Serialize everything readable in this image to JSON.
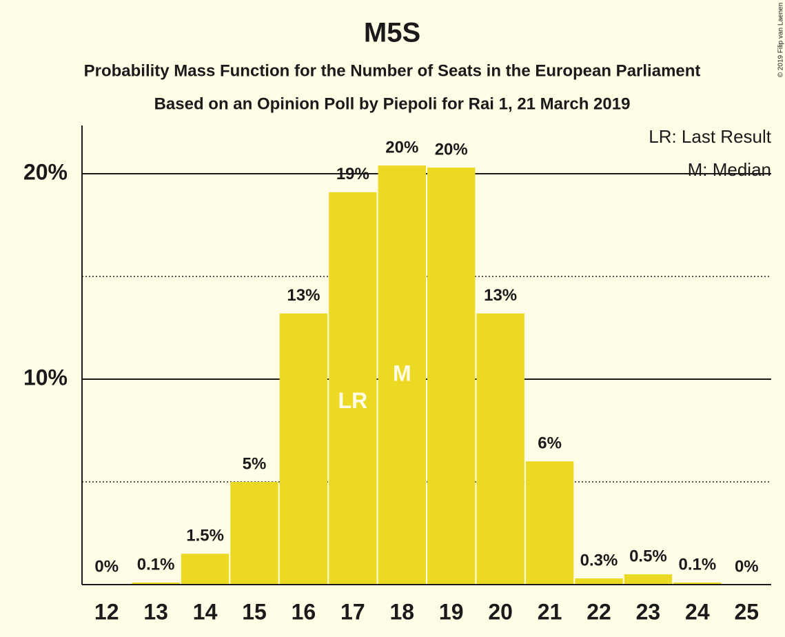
{
  "chart_data": {
    "type": "bar",
    "title": "M5S",
    "subtitle": "Probability Mass Function for the Number of Seats in the European Parliament",
    "subtitle2": "Based on an Opinion Poll by Piepoli for Rai 1, 21 March 2019",
    "copyright": "© 2019 Filip van Laenen",
    "categories": [
      "12",
      "13",
      "14",
      "15",
      "16",
      "17",
      "18",
      "19",
      "20",
      "21",
      "22",
      "23",
      "24",
      "25"
    ],
    "values": [
      0,
      0.1,
      1.5,
      5,
      13.2,
      19.1,
      20.4,
      20.3,
      13.2,
      6,
      0.3,
      0.5,
      0.1,
      0
    ],
    "value_labels": [
      "0%",
      "0.1%",
      "1.5%",
      "5%",
      "13%",
      "19%",
      "20%",
      "20%",
      "13%",
      "6%",
      "0.3%",
      "0.5%",
      "0.1%",
      "0%"
    ],
    "color": "#ecd924",
    "ylim": [
      0,
      22.35
    ],
    "yticks": [
      {
        "value": 10,
        "label": "10%"
      },
      {
        "value": 20,
        "label": "20%"
      }
    ],
    "minor_grid": [
      5,
      15
    ],
    "grid": true,
    "annotations": [
      {
        "text": "LR",
        "category": "17"
      },
      {
        "text": "M",
        "category": "18"
      }
    ],
    "legend": [
      "LR: Last Result",
      "M: Median"
    ],
    "legend_position": "upper right"
  }
}
